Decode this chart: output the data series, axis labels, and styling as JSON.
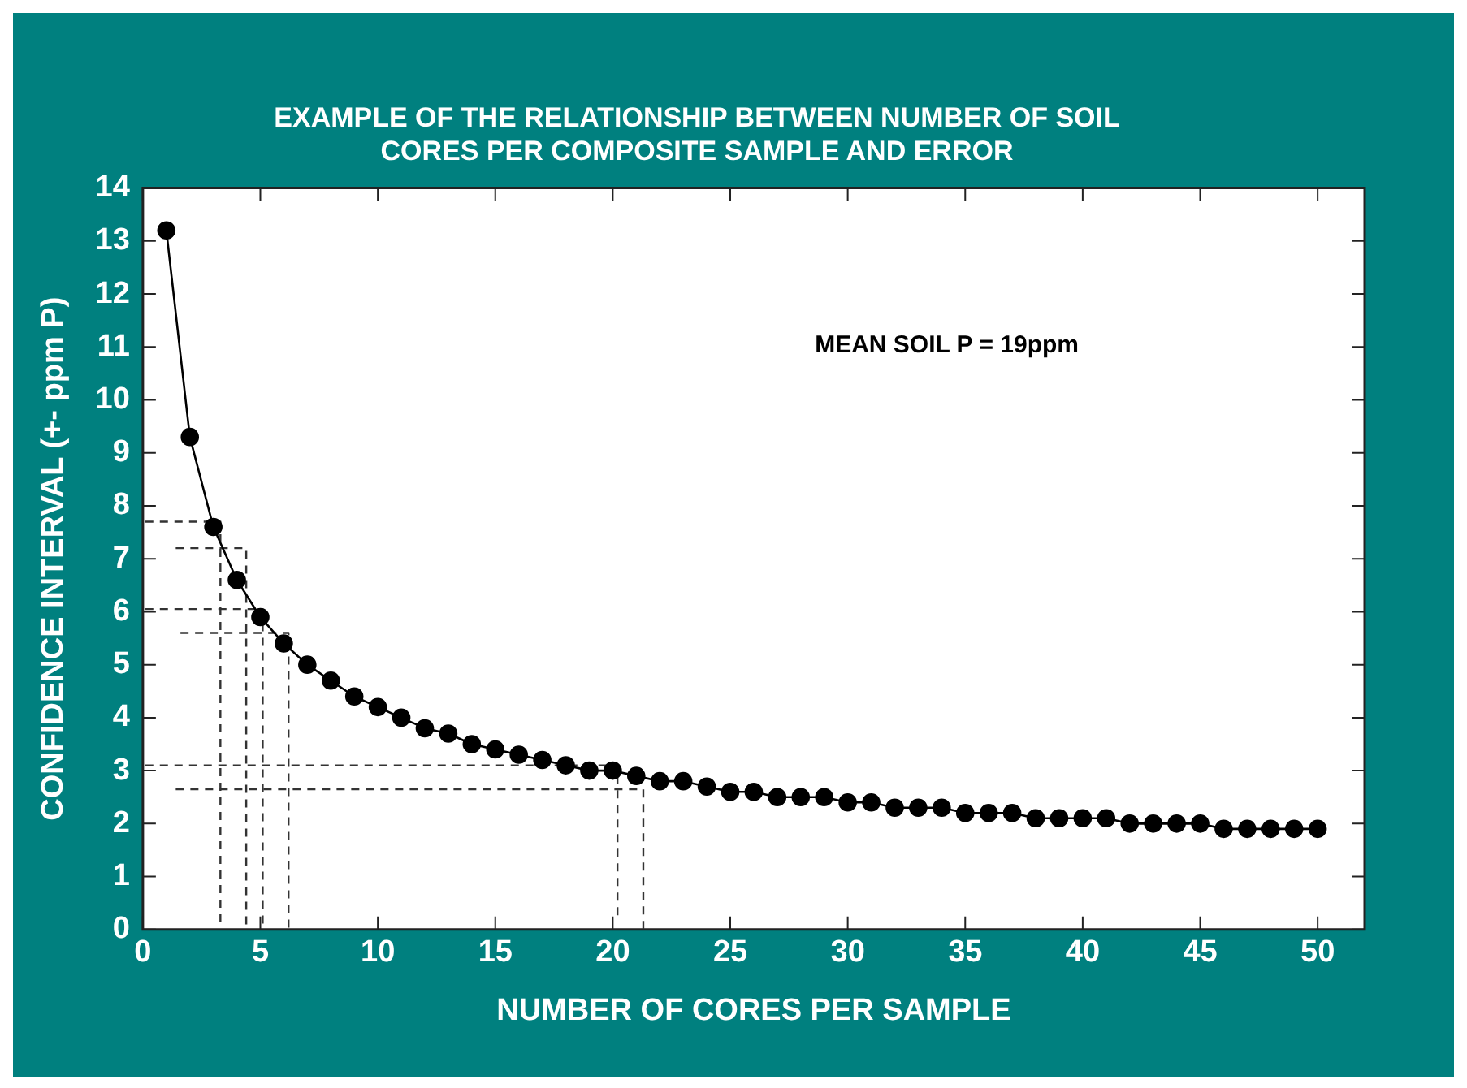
{
  "chart_data": {
    "type": "line",
    "title": "EXAMPLE OF THE RELATIONSHIP BETWEEN NUMBER OF SOIL\nCORES PER COMPOSITE SAMPLE AND ERROR",
    "xlabel": "NUMBER OF CORES PER SAMPLE",
    "ylabel": "CONFIDENCE INTERVAL (+- ppm P)",
    "annotations": [
      "MEAN SOIL P = 19ppm"
    ],
    "xlim": [
      0,
      52
    ],
    "xticks": [
      0,
      5,
      10,
      15,
      20,
      25,
      30,
      35,
      40,
      45,
      50
    ],
    "ylim": [
      0,
      14
    ],
    "yticks": [
      0,
      1,
      2,
      3,
      4,
      5,
      6,
      7,
      8,
      9,
      10,
      11,
      12,
      13,
      14
    ],
    "grid": false,
    "legend": false,
    "marker": "circle",
    "line_style": "solid",
    "series": [
      {
        "color": "#000000",
        "x": [
          1,
          2,
          3,
          4,
          5,
          6,
          7,
          8,
          9,
          10,
          11,
          12,
          13,
          14,
          15,
          16,
          17,
          18,
          19,
          20,
          21,
          22,
          23,
          24,
          25,
          26,
          27,
          28,
          29,
          30,
          31,
          32,
          33,
          34,
          35,
          36,
          37,
          38,
          39,
          40,
          41,
          42,
          43,
          44,
          45,
          46,
          47,
          48,
          49,
          50
        ],
        "values": [
          13.2,
          9.3,
          7.6,
          6.6,
          5.9,
          5.4,
          5.0,
          4.7,
          4.4,
          4.2,
          4.0,
          3.8,
          3.7,
          3.5,
          3.4,
          3.3,
          3.2,
          3.1,
          3.0,
          3.0,
          2.9,
          2.8,
          2.8,
          2.7,
          2.6,
          2.6,
          2.5,
          2.5,
          2.5,
          2.4,
          2.4,
          2.3,
          2.3,
          2.3,
          2.2,
          2.2,
          2.2,
          2.1,
          2.1,
          2.1,
          2.1,
          2.0,
          2.0,
          2.0,
          2.0,
          1.9,
          1.9,
          1.9,
          1.9,
          1.9
        ]
      },
      {
        "color": "#333333",
        "marker": "none",
        "line_style": "dashed",
        "x": [
          0.1,
          3.3,
          3.3
        ],
        "values": [
          7.7,
          7.7,
          0.1
        ]
      },
      {
        "color": "#333333",
        "marker": "none",
        "line_style": "dashed",
        "x": [
          1.4,
          4.4,
          4.4
        ],
        "values": [
          7.2,
          7.2,
          0
        ]
      },
      {
        "color": "#333333",
        "marker": "none",
        "line_style": "dashed",
        "x": [
          0.1,
          5.1,
          5.1
        ],
        "values": [
          6.05,
          6.05,
          0.1
        ]
      },
      {
        "color": "#333333",
        "marker": "none",
        "line_style": "dashed",
        "x": [
          1.6,
          6.2,
          6.2
        ],
        "values": [
          5.6,
          5.6,
          0
        ]
      },
      {
        "color": "#333333",
        "marker": "none",
        "line_style": "dashed",
        "x": [
          0.1,
          20.2,
          20.2
        ],
        "values": [
          3.1,
          3.1,
          0.2
        ]
      },
      {
        "color": "#333333",
        "marker": "none",
        "line_style": "dashed",
        "x": [
          1.4,
          21.3,
          21.3
        ],
        "values": [
          2.65,
          2.65,
          0
        ]
      }
    ]
  }
}
